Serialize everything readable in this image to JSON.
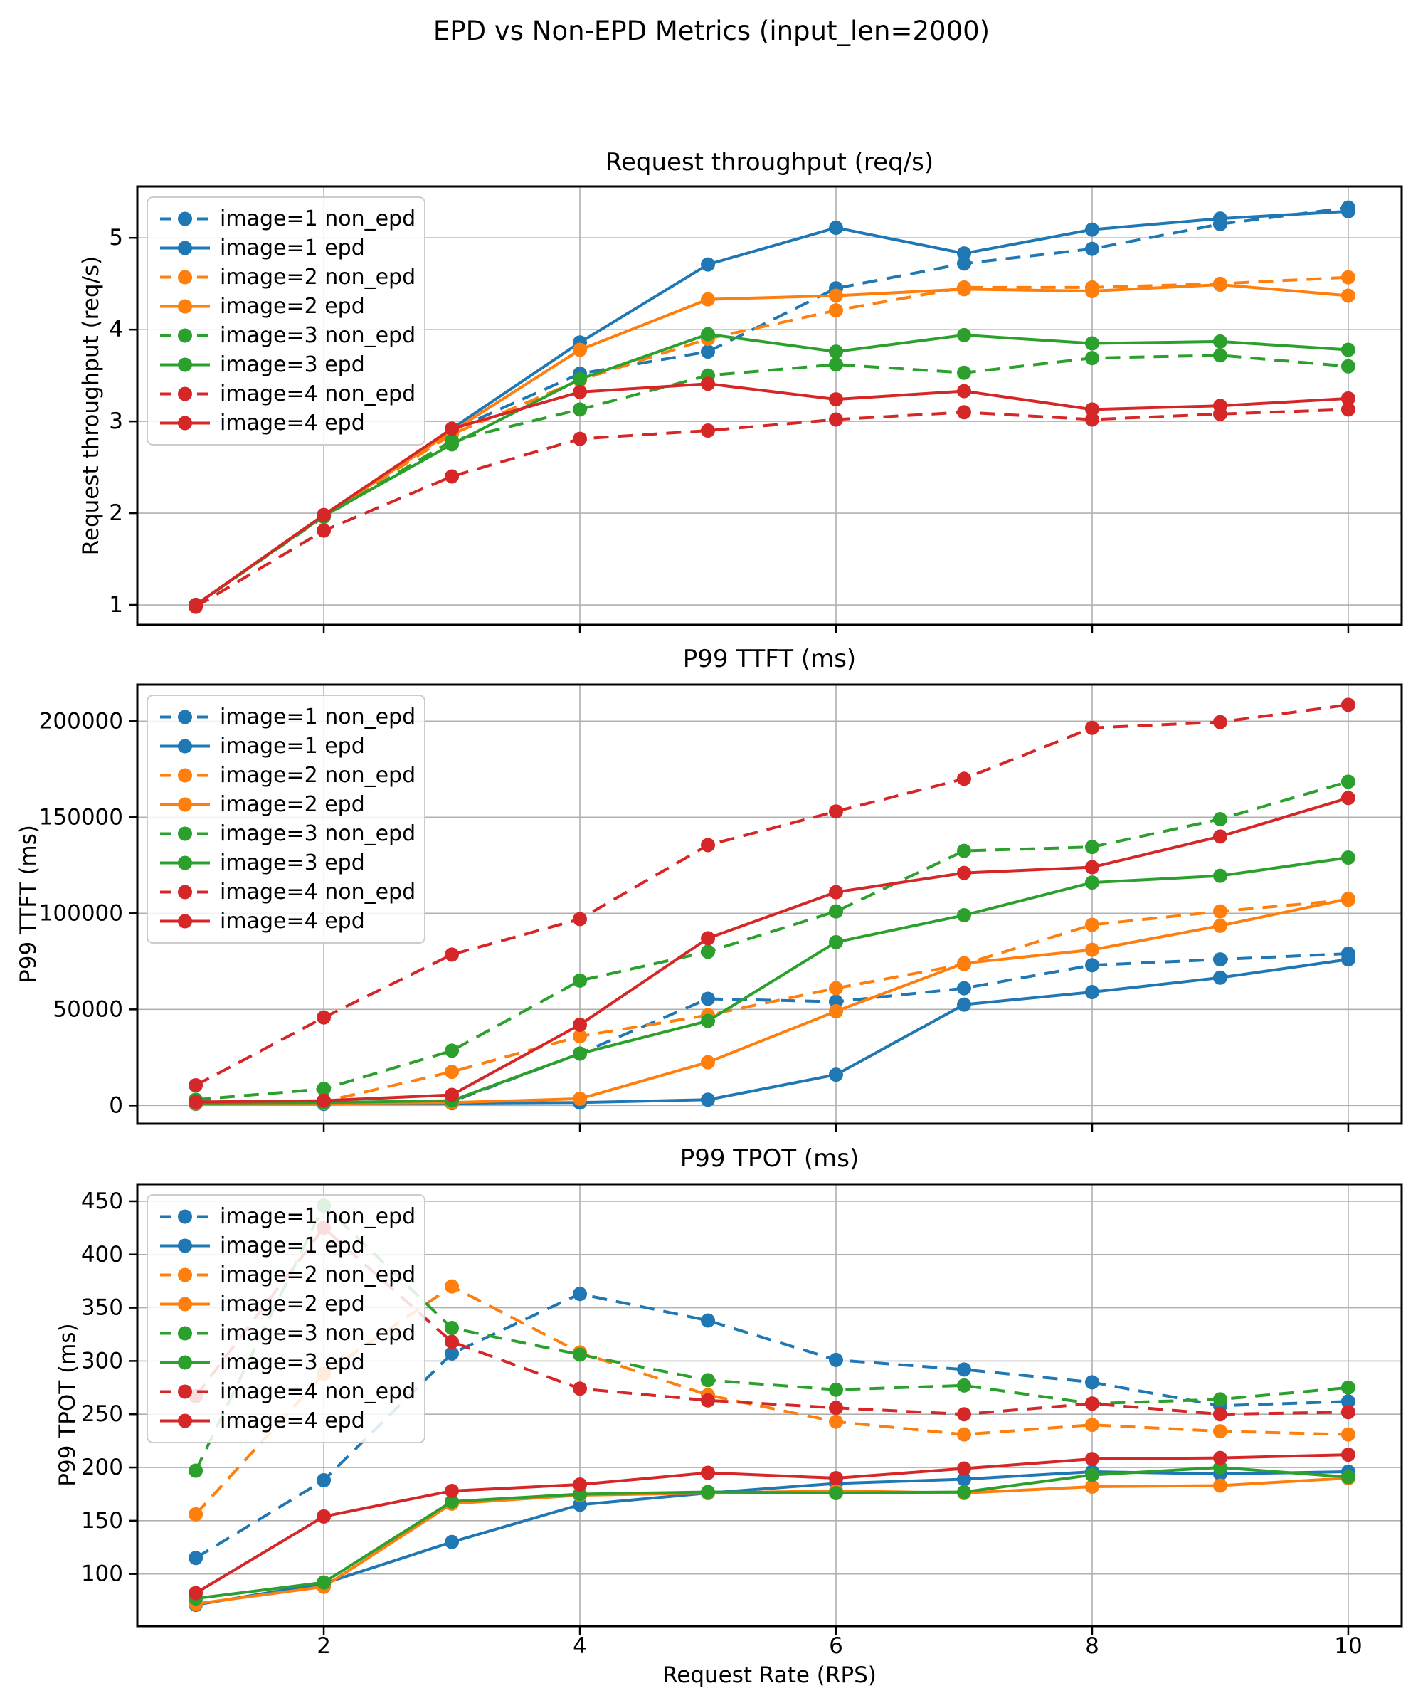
{
  "title": "EPD vs Non-EPD Metrics (input_len=2000)",
  "xlabel": "Request Rate (RPS)",
  "colors": {
    "image1": "#1f77b4",
    "image2": "#ff7f0e",
    "image3": "#2ca02c",
    "image4": "#d62728"
  },
  "grid_color": "#b0b0b0",
  "chart_data": [
    {
      "type": "line",
      "title": "Request throughput (req/s)",
      "ylabel": "Request throughput (req/s)",
      "grid": true,
      "legend_position": "upper-left",
      "x": [
        1,
        2,
        3,
        4,
        5,
        6,
        7,
        8,
        9,
        10
      ],
      "xticks": [
        2,
        4,
        6,
        8,
        10
      ],
      "xlim": [
        0.544,
        10.417
      ],
      "yticks": [
        1,
        2,
        3,
        4,
        5
      ],
      "ylim": [
        0.783,
        5.56
      ],
      "series": [
        {
          "name": "image=1 non_epd",
          "color": "#1f77b4",
          "dashed": true,
          "values": [
            1.0,
            1.97,
            2.9,
            3.52,
            3.76,
            4.45,
            4.72,
            4.88,
            5.15,
            5.33
          ]
        },
        {
          "name": "image=1 epd",
          "color": "#1f77b4",
          "dashed": false,
          "values": [
            1.0,
            1.97,
            2.92,
            3.86,
            4.71,
            5.11,
            4.83,
            5.09,
            5.21,
            5.29
          ]
        },
        {
          "name": "image=2 non_epd",
          "color": "#ff7f0e",
          "dashed": true,
          "values": [
            1.0,
            1.97,
            2.86,
            3.45,
            3.9,
            4.21,
            4.46,
            4.46,
            4.5,
            4.57
          ]
        },
        {
          "name": "image=2 epd",
          "color": "#ff7f0e",
          "dashed": false,
          "values": [
            1.0,
            1.97,
            2.89,
            3.78,
            4.33,
            4.37,
            4.44,
            4.42,
            4.49,
            4.37
          ]
        },
        {
          "name": "image=3 non_epd",
          "color": "#2ca02c",
          "dashed": true,
          "values": [
            1.0,
            1.96,
            2.79,
            3.13,
            3.5,
            3.62,
            3.53,
            3.69,
            3.72,
            3.6
          ]
        },
        {
          "name": "image=3 epd",
          "color": "#2ca02c",
          "dashed": false,
          "values": [
            1.0,
            1.97,
            2.75,
            3.46,
            3.95,
            3.76,
            3.94,
            3.85,
            3.87,
            3.78
          ]
        },
        {
          "name": "image=4 non_epd",
          "color": "#d62728",
          "dashed": true,
          "values": [
            0.98,
            1.81,
            2.4,
            2.81,
            2.9,
            3.02,
            3.1,
            3.02,
            3.08,
            3.13
          ]
        },
        {
          "name": "image=4 epd",
          "color": "#d62728",
          "dashed": false,
          "values": [
            1.0,
            1.98,
            2.92,
            3.32,
            3.41,
            3.24,
            3.33,
            3.13,
            3.17,
            3.25
          ]
        }
      ]
    },
    {
      "type": "line",
      "title": "P99 TTFT (ms)",
      "ylabel": "P99 TTFT (ms)",
      "grid": true,
      "legend_position": "upper-left",
      "x": [
        1,
        2,
        3,
        4,
        5,
        6,
        7,
        8,
        9,
        10
      ],
      "xticks": [
        2,
        4,
        6,
        8,
        10
      ],
      "xlim": [
        0.544,
        10.417
      ],
      "yticks": [
        0,
        50000,
        100000,
        150000,
        200000
      ],
      "ylim": [
        -9500,
        219000
      ],
      "series": [
        {
          "name": "image=1 non_epd",
          "color": "#1f77b4",
          "dashed": true,
          "values": [
            2000,
            1500,
            2000,
            27000,
            55500,
            54000,
            61000,
            73000,
            76000,
            79000
          ]
        },
        {
          "name": "image=1 epd",
          "color": "#1f77b4",
          "dashed": false,
          "values": [
            800,
            800,
            1200,
            1500,
            3000,
            16000,
            52500,
            59000,
            66500,
            76000
          ]
        },
        {
          "name": "image=2 non_epd",
          "color": "#ff7f0e",
          "dashed": true,
          "values": [
            1800,
            2000,
            17500,
            36000,
            47000,
            61000,
            73500,
            94000,
            101000,
            107000
          ]
        },
        {
          "name": "image=2 epd",
          "color": "#ff7f0e",
          "dashed": false,
          "values": [
            1000,
            1200,
            1500,
            3500,
            22500,
            49000,
            74000,
            81000,
            93500,
            107500
          ]
        },
        {
          "name": "image=3 non_epd",
          "color": "#2ca02c",
          "dashed": true,
          "values": [
            3000,
            8600,
            28500,
            65000,
            80000,
            101000,
            132500,
            134500,
            149000,
            168500
          ]
        },
        {
          "name": "image=3 epd",
          "color": "#2ca02c",
          "dashed": false,
          "values": [
            1300,
            1500,
            2500,
            27000,
            44000,
            85000,
            99000,
            116000,
            119500,
            129000
          ]
        },
        {
          "name": "image=4 non_epd",
          "color": "#d62728",
          "dashed": true,
          "values": [
            10500,
            45800,
            78500,
            97000,
            135500,
            153000,
            170000,
            196500,
            199500,
            208500
          ]
        },
        {
          "name": "image=4 epd",
          "color": "#d62728",
          "dashed": false,
          "values": [
            1800,
            2500,
            5500,
            42000,
            87000,
            111000,
            121000,
            124000,
            140000,
            160000
          ]
        }
      ]
    },
    {
      "type": "line",
      "title": "P99 TPOT (ms)",
      "ylabel": "P99 TPOT (ms)",
      "grid": true,
      "legend_position": "upper-left",
      "x": [
        1,
        2,
        3,
        4,
        5,
        6,
        7,
        8,
        9,
        10
      ],
      "xticks": [
        2,
        4,
        6,
        8,
        10
      ],
      "xlim": [
        0.544,
        10.417
      ],
      "yticks": [
        100,
        150,
        200,
        250,
        300,
        350,
        400,
        450
      ],
      "ylim": [
        51,
        466
      ],
      "series": [
        {
          "name": "image=1 non_epd",
          "color": "#1f77b4",
          "dashed": true,
          "values": [
            115,
            188,
            307,
            363,
            338,
            301,
            292,
            280,
            258,
            262
          ]
        },
        {
          "name": "image=1 epd",
          "color": "#1f77b4",
          "dashed": false,
          "values": [
            71,
            91,
            130,
            165,
            176,
            185,
            189,
            196,
            194,
            196
          ]
        },
        {
          "name": "image=2 non_epd",
          "color": "#ff7f0e",
          "dashed": true,
          "values": [
            156,
            288,
            370,
            308,
            268,
            243,
            231,
            240,
            234,
            231
          ]
        },
        {
          "name": "image=2 epd",
          "color": "#ff7f0e",
          "dashed": false,
          "values": [
            72,
            88,
            166,
            174,
            176,
            178,
            176,
            182,
            183,
            190
          ]
        },
        {
          "name": "image=3 non_epd",
          "color": "#2ca02c",
          "dashed": true,
          "values": [
            197,
            446,
            331,
            306,
            282,
            273,
            277,
            260,
            264,
            275
          ]
        },
        {
          "name": "image=3 epd",
          "color": "#2ca02c",
          "dashed": false,
          "values": [
            77,
            92,
            168,
            175,
            177,
            176,
            177,
            193,
            200,
            191
          ]
        },
        {
          "name": "image=4 non_epd",
          "color": "#d62728",
          "dashed": true,
          "values": [
            267,
            425,
            318,
            274,
            263,
            256,
            250,
            260,
            250,
            252
          ]
        },
        {
          "name": "image=4 epd",
          "color": "#d62728",
          "dashed": false,
          "values": [
            82,
            154,
            178,
            184,
            195,
            190,
            199,
            208,
            209,
            212
          ]
        }
      ]
    }
  ]
}
